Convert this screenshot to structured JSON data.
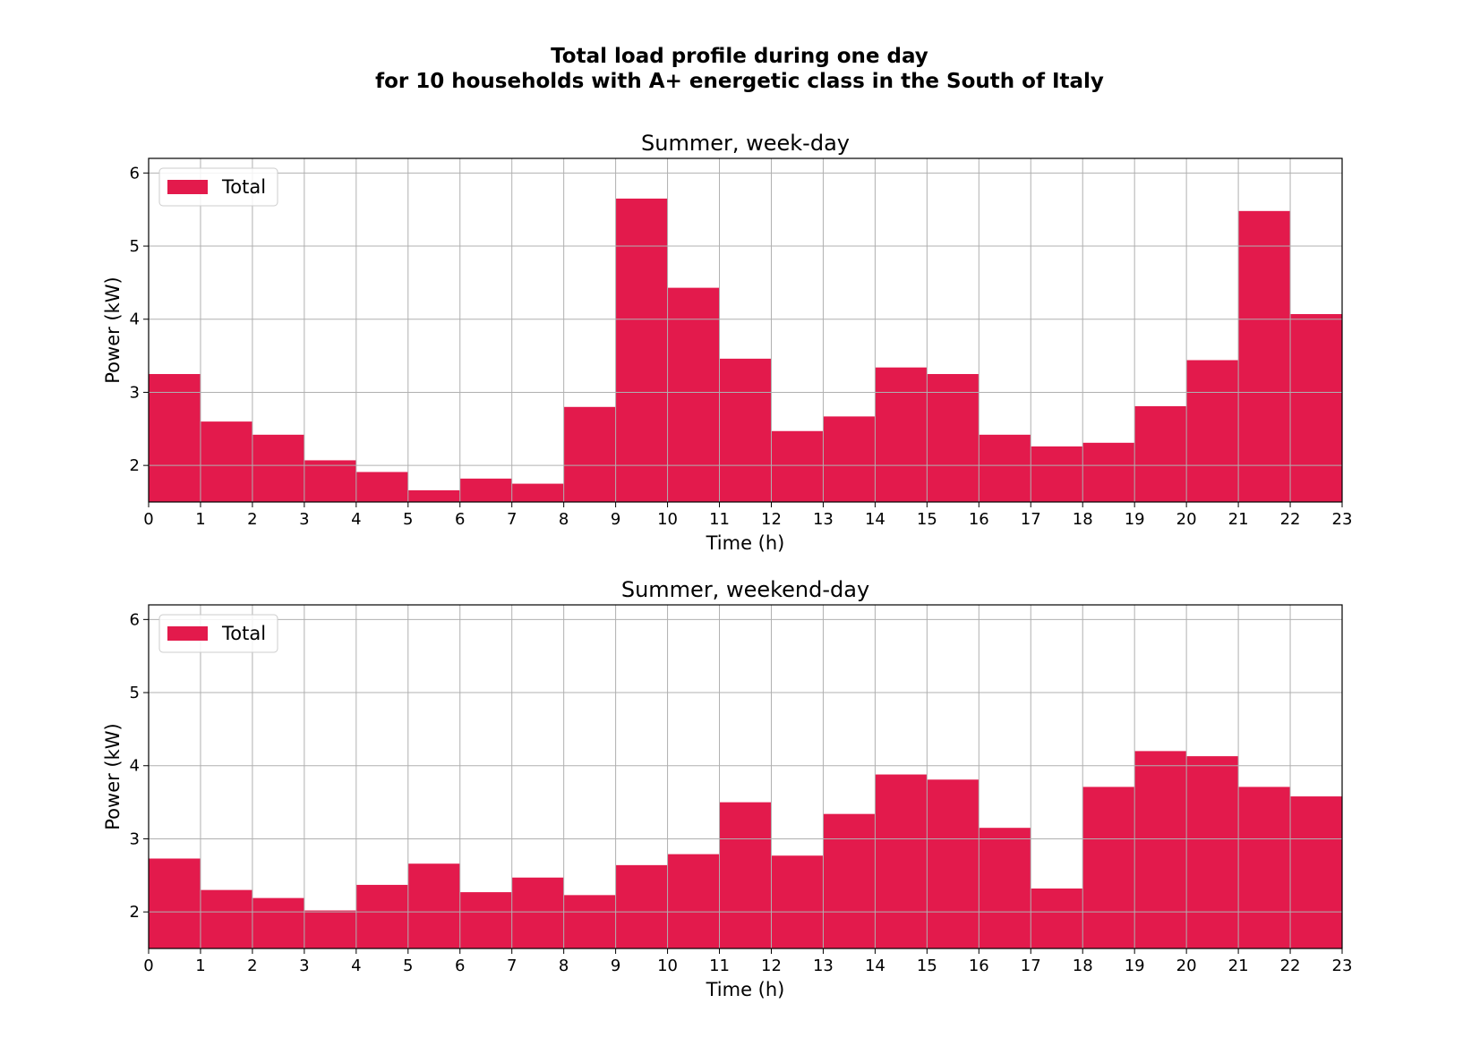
{
  "figure": {
    "title_line1": "Total load profile during one day",
    "title_line2": "for 10 households with A+ energetic class in the South of Italy"
  },
  "chart_data": [
    {
      "type": "bar",
      "title": "Summer, week-day",
      "xlabel": "Time (h)",
      "ylabel": "Power (kW)",
      "xlim": [
        0,
        23
      ],
      "ylim": [
        1.5,
        6.2
      ],
      "xticks": [
        0,
        1,
        2,
        3,
        4,
        5,
        6,
        7,
        8,
        9,
        10,
        11,
        12,
        13,
        14,
        15,
        16,
        17,
        18,
        19,
        20,
        21,
        22,
        23
      ],
      "yticks": [
        2,
        3,
        4,
        5,
        6
      ],
      "grid": true,
      "legend": "top-left",
      "bar_align": "edge",
      "x": [
        0,
        1,
        2,
        3,
        4,
        5,
        6,
        7,
        8,
        9,
        10,
        11,
        12,
        13,
        14,
        15,
        16,
        17,
        18,
        19,
        20,
        21,
        22
      ],
      "series": [
        {
          "name": "Total",
          "color": "#e31a4c",
          "values": [
            3.25,
            2.6,
            2.42,
            2.07,
            1.91,
            1.66,
            1.82,
            1.75,
            2.8,
            5.65,
            4.43,
            3.46,
            2.47,
            2.67,
            3.34,
            3.25,
            2.42,
            2.26,
            2.31,
            2.81,
            3.44,
            5.48,
            4.07
          ]
        }
      ]
    },
    {
      "type": "bar",
      "title": "Summer, weekend-day",
      "xlabel": "Time (h)",
      "ylabel": "Power (kW)",
      "xlim": [
        0,
        23
      ],
      "ylim": [
        1.5,
        6.2
      ],
      "xticks": [
        0,
        1,
        2,
        3,
        4,
        5,
        6,
        7,
        8,
        9,
        10,
        11,
        12,
        13,
        14,
        15,
        16,
        17,
        18,
        19,
        20,
        21,
        22,
        23
      ],
      "yticks": [
        2,
        3,
        4,
        5,
        6
      ],
      "grid": true,
      "legend": "top-left",
      "bar_align": "edge",
      "x": [
        0,
        1,
        2,
        3,
        4,
        5,
        6,
        7,
        8,
        9,
        10,
        11,
        12,
        13,
        14,
        15,
        16,
        17,
        18,
        19,
        20,
        21,
        22
      ],
      "series": [
        {
          "name": "Total",
          "color": "#e31a4c",
          "values": [
            2.73,
            2.3,
            2.19,
            2.02,
            2.37,
            2.66,
            2.27,
            2.47,
            2.23,
            2.64,
            2.79,
            3.5,
            2.77,
            3.34,
            3.88,
            3.81,
            3.15,
            2.32,
            3.71,
            4.2,
            4.13,
            3.71,
            3.58
          ]
        }
      ]
    }
  ]
}
